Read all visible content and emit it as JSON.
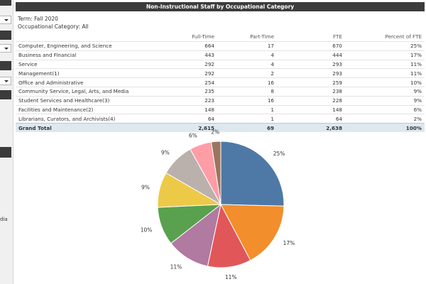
{
  "sidebar": {
    "partial_text": "dia"
  },
  "report": {
    "title": "Non-Instructional Staff by Occupational Category",
    "term": "Term: Fall 2020",
    "category_filter": "Occupational Category: All"
  },
  "table": {
    "headers": [
      "",
      "Full-Time",
      "Part-Time",
      "FTE",
      "Percent of FTE"
    ],
    "rows": [
      [
        "Computer, Engineering, and Science",
        "664",
        "17",
        "670",
        "25%"
      ],
      [
        "Business and Financial",
        "443",
        "4",
        "444",
        "17%"
      ],
      [
        "Service",
        "292",
        "4",
        "293",
        "11%"
      ],
      [
        "Management(1)",
        "292",
        "2",
        "293",
        "11%"
      ],
      [
        "Office and Administrative",
        "254",
        "16",
        "259",
        "10%"
      ],
      [
        "Community Service, Legal, Arts, and Media",
        "235",
        "8",
        "238",
        "9%"
      ],
      [
        "Student Services and Healthcare(3)",
        "223",
        "16",
        "228",
        "9%"
      ],
      [
        "Facilities and Maintenance(2)",
        "148",
        "1",
        "148",
        "6%"
      ],
      [
        "Librarians, Curators, and Archivists(4)",
        "64",
        "1",
        "64",
        "2%"
      ]
    ],
    "total": [
      "Grand Total",
      "2,615",
      "69",
      "2,638",
      "100%"
    ]
  },
  "chart_data": {
    "type": "pie",
    "categories": [
      "Computer, Engineering, and Science",
      "Business and Financial",
      "Service",
      "Management(1)",
      "Office and Administrative",
      "Community Service, Legal, Arts, and Media",
      "Student Services and Healthcare(3)",
      "Facilities and Maintenance(2)",
      "Librarians, Curators, and Archivists(4)"
    ],
    "values": [
      670,
      444,
      293,
      293,
      259,
      238,
      228,
      148,
      64
    ],
    "labels": [
      "25%",
      "17%",
      "11%",
      "11%",
      "10%",
      "9%",
      "9%",
      "6%",
      "2%"
    ],
    "colors": [
      "#4e79a7",
      "#f28e2b",
      "#e15759",
      "#b07aa1",
      "#59a14f",
      "#edc948",
      "#bab0ac",
      "#ff9da7",
      "#9c755f"
    ]
  }
}
